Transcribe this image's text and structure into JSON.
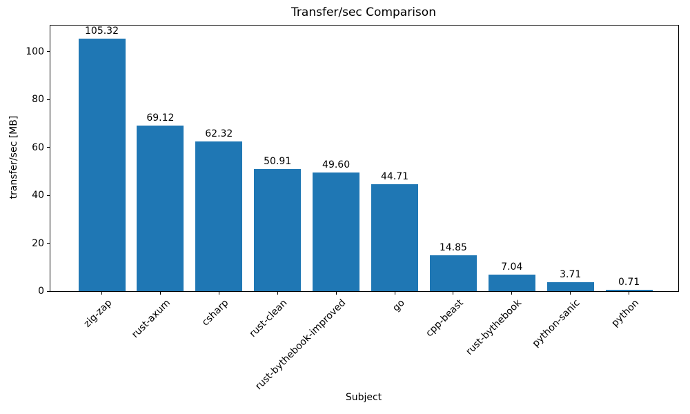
{
  "chart_data": {
    "type": "bar",
    "title": "Transfer/sec Comparison",
    "xlabel": "Subject",
    "ylabel": "transfer/sec [MB]",
    "categories": [
      "zig-zap",
      "rust-axum",
      "csharp",
      "rust-clean",
      "rust-bythebook-improved",
      "go",
      "cpp-beast",
      "rust-bythebook",
      "python-sanic",
      "python"
    ],
    "values": [
      105.32,
      69.12,
      62.32,
      50.91,
      49.6,
      44.71,
      14.85,
      7.04,
      3.71,
      0.71
    ],
    "value_labels": [
      "105.32",
      "69.12",
      "62.32",
      "50.91",
      "49.60",
      "44.71",
      "14.85",
      "7.04",
      "3.71",
      "0.71"
    ],
    "yticks": [
      0,
      20,
      40,
      60,
      80,
      100
    ],
    "ylim": [
      0,
      110.8
    ],
    "bar_color": "#1f77b4",
    "grid": false,
    "legend": null,
    "x_tick_rotation_deg": 45
  }
}
